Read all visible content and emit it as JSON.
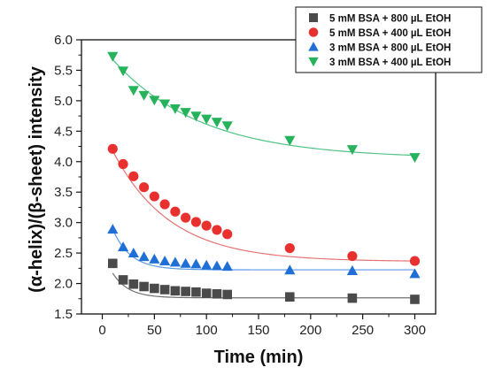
{
  "chart_data": {
    "type": "scatter",
    "title": "",
    "xlabel": "Time (min)",
    "ylabel": "(α-helix)/(β-sheet) intensity",
    "xlim": [
      -20,
      320
    ],
    "ylim": [
      1.5,
      6.0
    ],
    "x_ticks": [
      "0",
      "50",
      "100",
      "150",
      "200",
      "250",
      "300"
    ],
    "y_ticks": [
      "1.5",
      "2.0",
      "2.5",
      "3.0",
      "3.5",
      "4.0",
      "4.5",
      "5.0",
      "5.5",
      "6.0"
    ],
    "legend_position": "top-right",
    "grid": false,
    "series": [
      {
        "name": "5 mM BSA + 800 µL EtOH",
        "marker": "square",
        "color": "#4a4a4a",
        "fit_color": "#6e6e6e",
        "x": [
          10,
          20,
          30,
          40,
          50,
          60,
          70,
          80,
          90,
          100,
          110,
          120,
          180,
          240,
          300
        ],
        "y": [
          2.33,
          2.06,
          1.99,
          1.95,
          1.92,
          1.9,
          1.88,
          1.87,
          1.86,
          1.84,
          1.83,
          1.82,
          1.78,
          1.76,
          1.74
        ],
        "fit": {
          "y0": 1.765,
          "a": 0.79,
          "tau": 15
        }
      },
      {
        "name": "5 mM BSA + 400 µL EtOH",
        "marker": "circle",
        "color": "#e8312f",
        "fit_color": "#e57373",
        "x": [
          10,
          20,
          30,
          40,
          50,
          60,
          70,
          80,
          90,
          100,
          110,
          120,
          180,
          240,
          300
        ],
        "y": [
          4.21,
          3.96,
          3.76,
          3.58,
          3.43,
          3.3,
          3.18,
          3.08,
          3.01,
          2.95,
          2.88,
          2.81,
          2.58,
          2.45,
          2.37
        ],
        "fit": {
          "y0": 2.36,
          "a": 2.18,
          "tau": 55
        }
      },
      {
        "name": "3 mM BSA + 800 µL EtOH",
        "marker": "triangle-up",
        "color": "#1f6fd6",
        "fit_color": "#5a9be6",
        "x": [
          10,
          20,
          30,
          40,
          50,
          60,
          70,
          80,
          90,
          100,
          110,
          120,
          180,
          240,
          300
        ],
        "y": [
          2.89,
          2.6,
          2.5,
          2.44,
          2.4,
          2.37,
          2.35,
          2.33,
          2.32,
          2.3,
          2.29,
          2.28,
          2.22,
          2.21,
          2.16
        ],
        "fit": {
          "y0": 2.225,
          "a": 1.2,
          "tau": 17
        }
      },
      {
        "name": "3 mM BSA + 400 µL EtOH",
        "marker": "triangle-down",
        "color": "#27b35c",
        "fit_color": "#4fc383",
        "x": [
          10,
          20,
          30,
          40,
          50,
          60,
          70,
          80,
          90,
          100,
          110,
          120,
          180,
          240,
          300
        ],
        "y": [
          5.73,
          5.49,
          5.17,
          5.09,
          5.01,
          4.95,
          4.87,
          4.81,
          4.75,
          4.7,
          4.65,
          4.59,
          4.35,
          4.2,
          4.07
        ],
        "fit": {
          "y0": 4.05,
          "a": 1.83,
          "tau": 85
        }
      }
    ]
  }
}
